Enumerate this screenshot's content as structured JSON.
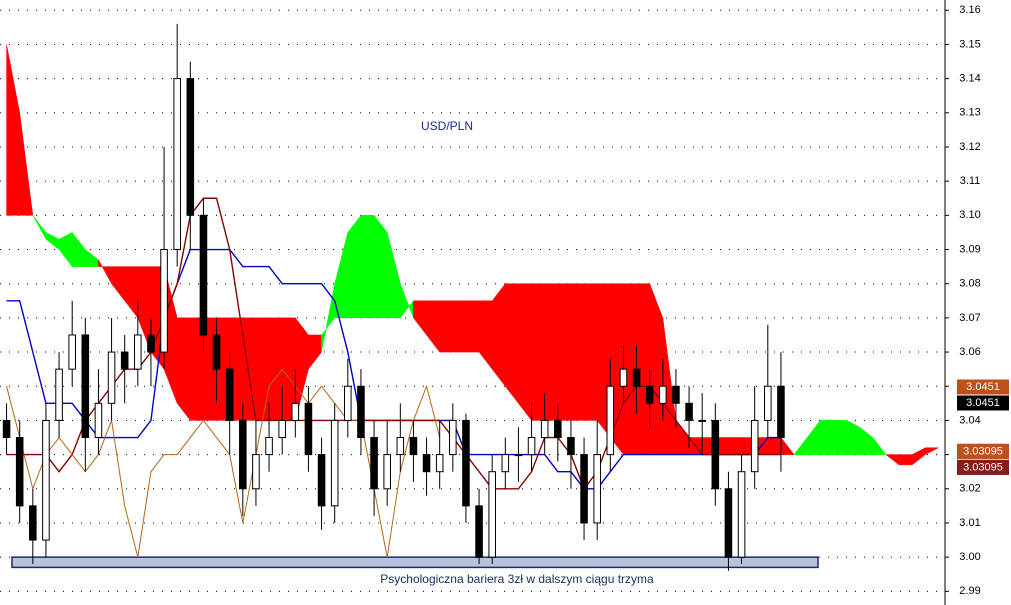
{
  "chart_data": {
    "type": "candlestick",
    "title": "USD/PLN",
    "annotation": "Psychologiczna bariera 3zł w dalszym ciągu trzyma",
    "ylim": [
      2.986,
      3.163
    ],
    "yticks": [
      2.99,
      {
        "value": 3,
        "label": "3.00"
      },
      3.01,
      3.02,
      3.03,
      3.04,
      3.05,
      3.06,
      3.07,
      3.08,
      3.09,
      {
        "value": 3.1,
        "label": "3.10"
      },
      3.11,
      3.12,
      3.13,
      3.14,
      3.15,
      3.16
    ],
    "grid": true,
    "up_color": "#ffffff",
    "down_color": "#000000",
    "open": [
      3.04,
      3.035,
      3.015,
      3.005,
      3.04,
      3.055,
      3.065,
      3.035,
      3.045,
      3.06,
      3.055,
      3.065,
      3.06,
      3.09,
      3.14,
      3.1,
      3.065,
      3.055,
      3.04,
      3.02,
      3.03,
      3.035,
      3.04,
      3.045,
      3.03,
      3.015,
      3.04,
      3.05,
      3.035,
      3.02,
      3.03,
      3.035,
      3.03,
      3.025,
      3.03,
      3.04,
      3.015,
      3.0,
      3.025,
      3.03,
      3.03,
      3.035,
      3.04,
      3.035,
      3.03,
      3.01,
      3.03,
      3.05,
      3.055,
      3.05,
      3.045,
      3.05,
      3.045,
      3.04,
      3.04,
      3.02,
      3.0,
      3.025,
      3.04,
      3.05
    ],
    "high": [
      3.045,
      3.04,
      3.02,
      3.045,
      3.06,
      3.075,
      3.07,
      3.055,
      3.07,
      3.065,
      3.075,
      3.07,
      3.12,
      3.156,
      3.145,
      3.105,
      3.07,
      3.06,
      3.045,
      3.04,
      3.045,
      3.05,
      3.055,
      3.05,
      3.035,
      3.045,
      3.058,
      3.055,
      3.04,
      3.04,
      3.045,
      3.04,
      3.035,
      3.04,
      3.045,
      3.042,
      3.02,
      3.03,
      3.035,
      3.038,
      3.045,
      3.048,
      3.045,
      3.04,
      3.035,
      3.04,
      3.058,
      3.062,
      3.062,
      3.055,
      3.058,
      3.055,
      3.05,
      3.048,
      3.045,
      3.025,
      3.03,
      3.05,
      3.068,
      3.06
    ],
    "low": [
      3.03,
      3.01,
      2.998,
      3.0,
      3.035,
      3.05,
      3.025,
      3.03,
      3.04,
      3.045,
      3.05,
      3.05,
      3.055,
      3.085,
      3.09,
      3.06,
      3.045,
      3.03,
      3.012,
      3.015,
      3.025,
      3.03,
      3.035,
      3.025,
      3.008,
      3.01,
      3.035,
      3.03,
      3.012,
      3.015,
      3.025,
      3.022,
      3.018,
      3.02,
      3.025,
      3.01,
      2.998,
      2.998,
      3.02,
      3.022,
      3.025,
      3.03,
      3.028,
      3.02,
      3.005,
      3.005,
      3.025,
      3.045,
      3.042,
      3.038,
      3.04,
      3.038,
      3.032,
      3.03,
      3.015,
      2.996,
      2.998,
      3.02,
      3.035,
      3.025
    ],
    "close": [
      3.035,
      3.015,
      3.005,
      3.04,
      3.055,
      3.065,
      3.035,
      3.045,
      3.06,
      3.055,
      3.065,
      3.06,
      3.09,
      3.14,
      3.1,
      3.065,
      3.055,
      3.04,
      3.02,
      3.03,
      3.035,
      3.04,
      3.045,
      3.03,
      3.015,
      3.04,
      3.05,
      3.035,
      3.02,
      3.03,
      3.035,
      3.03,
      3.025,
      3.03,
      3.04,
      3.015,
      3.0,
      3.025,
      3.03,
      3.03,
      3.035,
      3.04,
      3.035,
      3.03,
      3.01,
      3.03,
      3.05,
      3.055,
      3.05,
      3.045,
      3.05,
      3.045,
      3.04,
      3.04,
      3.02,
      3.0,
      3.025,
      3.04,
      3.05,
      3.035
    ],
    "lines": [
      {
        "color": "#0000cc",
        "values": [
          3.075,
          3.075,
          3.06,
          3.045,
          3.045,
          3.045,
          3.04,
          3.035,
          3.035,
          3.035,
          3.035,
          3.04,
          3.07,
          3.08,
          3.09,
          3.09,
          3.09,
          3.09,
          3.085,
          3.085,
          3.085,
          3.08,
          3.08,
          3.08,
          3.08,
          3.075,
          3.06,
          3.04,
          3.04,
          3.04,
          3.04,
          3.04,
          3.04,
          3.04,
          3.04,
          3.03,
          3.03,
          3.03,
          3.03,
          3.03,
          3.03,
          3.03,
          3.025,
          3.025,
          3.02,
          3.02,
          3.025,
          3.03,
          3.03,
          3.03,
          3.03,
          3.03,
          3.03,
          3.03,
          3.03,
          3.03,
          3.03,
          3.03,
          3.035,
          3.035
        ]
      },
      {
        "color": "#8b0000",
        "values": [
          3.03,
          3.03,
          3.03,
          3.03,
          3.025,
          3.03,
          3.04,
          3.045,
          3.05,
          3.055,
          3.055,
          3.06,
          3.07,
          3.08,
          3.1,
          3.105,
          3.105,
          3.09,
          3.065,
          3.04,
          3.04,
          3.04,
          3.04,
          3.04,
          3.04,
          3.04,
          3.04,
          3.04,
          3.04,
          3.04,
          3.04,
          3.04,
          3.04,
          3.04,
          3.035,
          3.03,
          3.025,
          3.02,
          3.02,
          3.02,
          3.025,
          3.035,
          3.035,
          3.03,
          3.02,
          3.025,
          3.035,
          3.045,
          3.05,
          3.05,
          3.045,
          3.04,
          3.035,
          3.03,
          3.03,
          3.03,
          3.03,
          3.03,
          3.03,
          3.03
        ]
      },
      {
        "color": "#b5651d",
        "values": [
          3.05,
          3.035,
          3.02,
          3.03,
          3.035,
          3.03,
          3.025,
          3.03,
          3.04,
          3.015,
          3.0,
          3.025,
          3.03,
          3.03,
          3.035,
          3.04,
          3.035,
          3.03,
          3.01,
          3.03,
          3.05,
          3.055,
          3.05,
          3.045,
          3.05,
          3.045,
          3.04,
          3.04,
          3.02,
          3.0,
          3.025,
          3.04,
          3.05,
          3.035,
          null,
          null,
          null,
          null,
          null,
          null,
          null,
          null,
          null,
          null,
          null,
          null,
          null,
          null,
          null,
          null,
          null,
          null,
          null,
          null,
          null,
          null,
          null,
          null,
          null,
          null
        ]
      }
    ],
    "cloud": {
      "up_color": "#00ff00",
      "down_color": "#ff0000",
      "span_a": [
        3.1,
        3.1,
        3.1,
        3.095,
        3.093,
        3.095,
        3.09,
        3.087,
        3.08,
        3.075,
        3.07,
        3.06,
        3.055,
        3.045,
        3.04,
        3.04,
        3.04,
        3.04,
        3.04,
        3.04,
        3.04,
        3.04,
        3.04,
        3.055,
        3.06,
        3.08,
        3.095,
        3.1,
        3.1,
        3.095,
        3.08,
        3.07,
        3.065,
        3.06,
        3.06,
        3.06,
        3.06,
        3.055,
        3.05,
        3.045,
        3.04,
        3.04,
        3.04,
        3.04,
        3.04,
        3.04,
        3.035,
        3.03,
        3.03,
        3.03,
        3.03,
        3.03,
        3.03,
        3.03,
        3.03,
        3.03,
        3.03,
        3.03,
        3.03,
        3.03,
        3.03,
        3.035,
        3.04,
        3.04,
        3.04,
        3.038,
        3.035,
        3.03,
        3.027,
        3.027,
        3.03,
        3.032
      ],
      "span_b": [
        3.15,
        3.13,
        3.1,
        3.093,
        3.09,
        3.085,
        3.085,
        3.085,
        3.085,
        3.085,
        3.085,
        3.085,
        3.085,
        3.07,
        3.07,
        3.07,
        3.07,
        3.07,
        3.07,
        3.07,
        3.07,
        3.07,
        3.07,
        3.065,
        3.065,
        3.07,
        3.07,
        3.07,
        3.07,
        3.07,
        3.07,
        3.075,
        3.075,
        3.075,
        3.075,
        3.075,
        3.075,
        3.075,
        3.08,
        3.08,
        3.08,
        3.08,
        3.08,
        3.08,
        3.08,
        3.08,
        3.08,
        3.08,
        3.08,
        3.08,
        3.07,
        3.04,
        3.035,
        3.035,
        3.035,
        3.035,
        3.035,
        3.035,
        3.035,
        3.035,
        3.03,
        3.03,
        3.03,
        3.03,
        3.03,
        3.03,
        3.03,
        3.03,
        3.03,
        3.03,
        3.032,
        3.032
      ]
    },
    "support_zone": {
      "range": [
        2.997,
        3
      ],
      "color": "#b8c4dc"
    },
    "price_labels": [
      {
        "value": 3.0451,
        "color": "#c0501a"
      },
      {
        "value": 3.0451,
        "color": "#000000"
      },
      {
        "value": 3.03095,
        "color": "#8b1a1a"
      },
      {
        "value": 3.03095,
        "color": "#1a1aff"
      },
      {
        "value": 3.03095,
        "color": "#c0501a"
      },
      {
        "value": 3.03095,
        "color": "#8b1a1a"
      }
    ]
  }
}
